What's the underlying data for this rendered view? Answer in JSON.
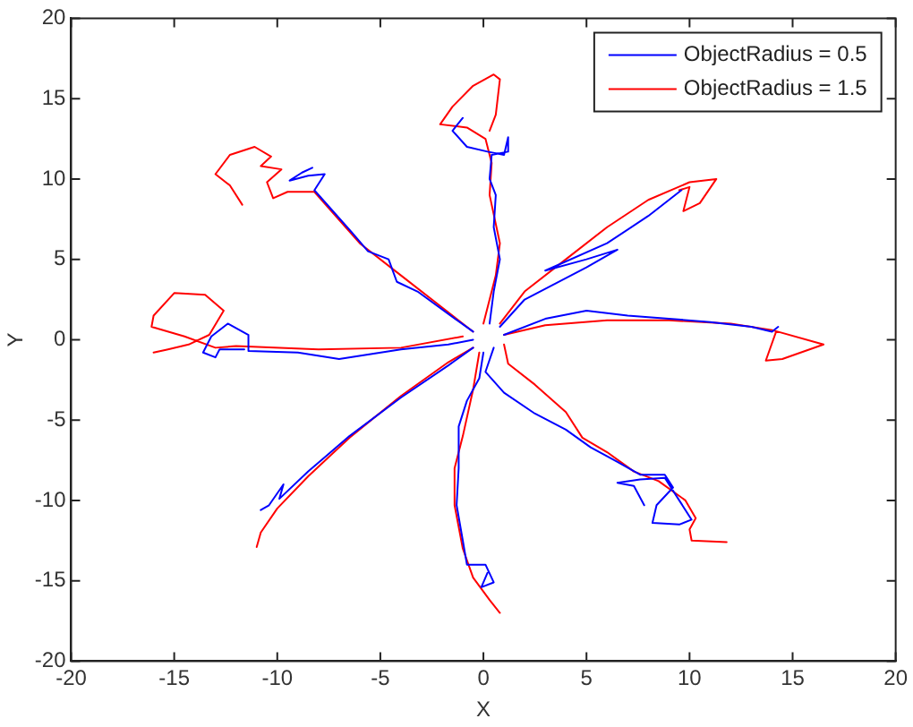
{
  "chart_data": {
    "type": "line",
    "xlabel": "X",
    "ylabel": "Y",
    "xlim": [
      -20,
      20
    ],
    "ylim": [
      -20,
      20
    ],
    "xticks": [
      -20,
      -15,
      -10,
      -5,
      0,
      5,
      10,
      15,
      20
    ],
    "yticks": [
      -20,
      -15,
      -10,
      -5,
      0,
      5,
      10,
      15,
      20
    ],
    "grid": false,
    "legend": "top right",
    "marker": "none",
    "line_style": "solid",
    "series": [
      {
        "name": "ObjectRadius = 0.5",
        "color": "#0000ff",
        "x": [
          0.3,
          0.5,
          0.8,
          0.5,
          0.6,
          0.3,
          0.4,
          1.2,
          1.2,
          1.0,
          0.2,
          -0.8,
          -1.5,
          -1,
          null,
          0.8,
          2,
          3.5,
          5,
          6.5,
          5,
          3,
          6,
          8,
          9.6,
          null,
          1,
          3,
          5,
          7,
          9,
          11,
          13,
          14,
          14.3,
          null,
          0.5,
          0.1,
          1,
          2.5,
          4,
          5.2,
          6.5,
          7.6,
          8.8,
          9.2,
          8.4,
          8.2,
          9.5,
          10.1,
          9.5,
          8.8,
          7.6,
          6.5,
          7.3,
          7.8,
          null,
          0,
          -0.2,
          -0.8,
          -1.2,
          -1.2,
          -1.3,
          -1,
          -0.8,
          0.1,
          0.5,
          -0.1,
          0.2,
          null,
          -0.5,
          -1.7,
          -4,
          -6.5,
          -8.5,
          -9.9,
          -9.7,
          -10.4,
          -10.8,
          null,
          -0.5,
          -1.7,
          -4,
          -7,
          -9,
          -11.4,
          -11.4,
          -12.4,
          -13.2,
          -13.6,
          -13,
          -12.8,
          -11.6,
          null,
          -0.5,
          -1.7,
          -3.2,
          -4.2,
          -4.6,
          -5.6,
          -6.4,
          -8.2,
          -7.7,
          -8.5,
          -9.4,
          -8.8,
          -8.3
        ],
        "values": [
          1,
          3,
          5,
          7,
          9,
          10,
          11.5,
          11.7,
          12.6,
          11.5,
          11.7,
          12,
          13,
          13.8,
          null,
          0.8,
          2.5,
          3.5,
          4.5,
          5.6,
          5,
          4.3,
          6,
          7.7,
          9.3,
          null,
          0.3,
          1.3,
          1.8,
          1.5,
          1.3,
          1.1,
          0.8,
          0.5,
          0.8,
          null,
          -0.5,
          -2,
          -3.3,
          -4.6,
          -5.6,
          -6.7,
          -7.6,
          -8.4,
          -8.4,
          -9.2,
          -10.3,
          -11.4,
          -11.5,
          -11.2,
          -10,
          -8.6,
          -8.7,
          -8.9,
          -9.1,
          -10.3,
          null,
          -0.8,
          -2.4,
          -3.8,
          -5.4,
          -8,
          -10.3,
          -12.5,
          -14,
          -14,
          -15.1,
          -15.4,
          -14.5,
          null,
          -0.5,
          -1.6,
          -3.6,
          -6,
          -8.2,
          -9.9,
          -9,
          -10.3,
          -10.6,
          null,
          0,
          -0.3,
          -0.6,
          -1.2,
          -0.8,
          -0.7,
          0.3,
          1,
          0.2,
          -0.8,
          -1.1,
          -0.6,
          -0.6,
          null,
          0.5,
          1.6,
          3,
          3.6,
          5,
          5.5,
          6.7,
          9.3,
          10.3,
          10.2,
          9.9,
          10.4,
          10.7
        ]
      },
      {
        "name": "ObjectRadius = 1.5",
        "color": "#ff0000",
        "x": [
          0,
          0.6,
          0.8,
          0.3,
          0.4,
          0.1,
          -0.8,
          -2.1,
          -1.5,
          -0.5,
          0.5,
          0.8,
          0.6,
          0.3,
          null,
          0.8,
          2,
          4,
          6,
          8,
          10,
          11.3,
          10.5,
          9.7,
          10,
          9.5,
          null,
          1,
          3,
          6,
          9,
          12,
          14,
          16.5,
          14.5,
          13.7,
          14.2,
          null,
          1,
          1.2,
          2.5,
          4,
          4.8,
          6,
          7.3,
          8.5,
          9.8,
          10.3,
          10,
          10.1,
          11.8,
          null,
          -0.2,
          -0.5,
          -1,
          -1.4,
          -1.4,
          -1,
          -0.5,
          0.3,
          0.8,
          null,
          -0.5,
          -1.7,
          -4,
          -6.5,
          -8.5,
          -10,
          -10.8,
          -11,
          null,
          -1,
          -4,
          -8,
          -12,
          -13,
          -14.5,
          -16.1,
          -16,
          -15,
          -13.5,
          -12.6,
          -13.3,
          -14.3,
          -15.3,
          -16,
          null,
          -0.5,
          -2,
          -4,
          -6,
          -8.2,
          -9.5,
          -10.2,
          -10.5,
          -9.8,
          -10.8,
          -10.3,
          -11.1,
          -12.3,
          -13,
          -12.3,
          -11.7
        ],
        "values": [
          1,
          4,
          6,
          9,
          11,
          12.5,
          13.2,
          13.4,
          14.5,
          15.8,
          16.5,
          16.2,
          14,
          13,
          null,
          1,
          3,
          5,
          7,
          8.7,
          9.8,
          10,
          8.5,
          8,
          9.5,
          9.3,
          null,
          0.3,
          0.9,
          1.2,
          1.2,
          1,
          0.6,
          -0.3,
          -1.2,
          -1.3,
          0.5,
          null,
          -0.3,
          -1.5,
          -2.8,
          -4.5,
          -6.1,
          -7,
          -8.2,
          -8.8,
          -10,
          -11.1,
          -11.8,
          -12.5,
          -12.6,
          null,
          -0.8,
          -3.1,
          -6,
          -8,
          -10.3,
          -13,
          -14.8,
          -16.2,
          -17,
          null,
          -0.5,
          -1.4,
          -3.5,
          -6.1,
          -8.5,
          -10.5,
          -12,
          -12.9,
          null,
          0.2,
          -0.5,
          -0.6,
          -0.4,
          -0.5,
          0.2,
          0.8,
          1.5,
          2.9,
          2.8,
          1.8,
          0.3,
          -0.3,
          -0.6,
          -0.8,
          null,
          0.5,
          2,
          4,
          6,
          9.2,
          9.2,
          8.8,
          9.8,
          10.6,
          10.8,
          11.4,
          12,
          11.5,
          10.3,
          9.6,
          8.4
        ]
      }
    ]
  }
}
